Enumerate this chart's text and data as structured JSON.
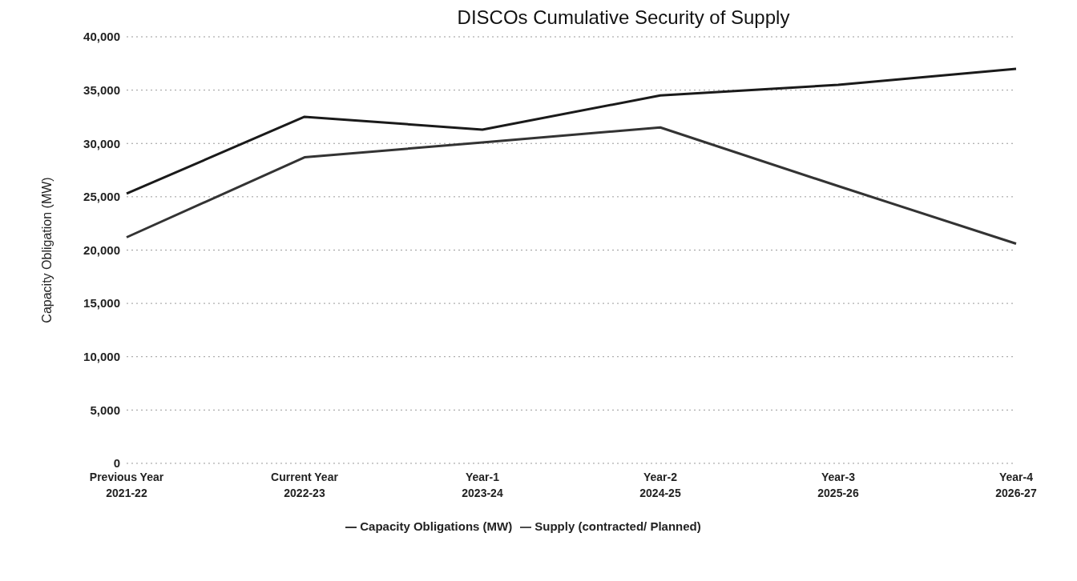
{
  "chart_data": {
    "type": "line",
    "title": "DISCOs Cumulative Security of Supply",
    "ylabel": "Capacity Obligation (MW)",
    "categories": [
      "Previous Year\n2021-22",
      "Current Year\n2022-23",
      "Year-1\n2023-24",
      "Year-2\n2024-25",
      "Year-3\n2025-26",
      "Year-4\n2026-27"
    ],
    "series": [
      {
        "name": "Capacity Obligations (MW)",
        "color": "#1a1a1a",
        "values": [
          25300,
          32500,
          31300,
          34500,
          35500,
          37000
        ]
      },
      {
        "name": "Supply (contracted/ Planned)",
        "color": "#333333",
        "values": [
          21200,
          28700,
          30100,
          31500,
          26000,
          20600
        ]
      }
    ],
    "ylim": [
      0,
      40000
    ],
    "yticks": [
      {
        "value": 0,
        "label": "0"
      },
      {
        "value": 5000,
        "label": "5,000"
      },
      {
        "value": 10000,
        "label": "10,000"
      },
      {
        "value": 15000,
        "label": "15,000"
      },
      {
        "value": 20000,
        "label": "20,000"
      },
      {
        "value": 25000,
        "label": "25,000"
      },
      {
        "value": 30000,
        "label": "30,000"
      },
      {
        "value": 35000,
        "label": "35,000"
      },
      {
        "value": 40000,
        "label": "40,000"
      }
    ],
    "grid": "y",
    "legend": "bottom",
    "marker": "none",
    "line_style": "solid"
  }
}
